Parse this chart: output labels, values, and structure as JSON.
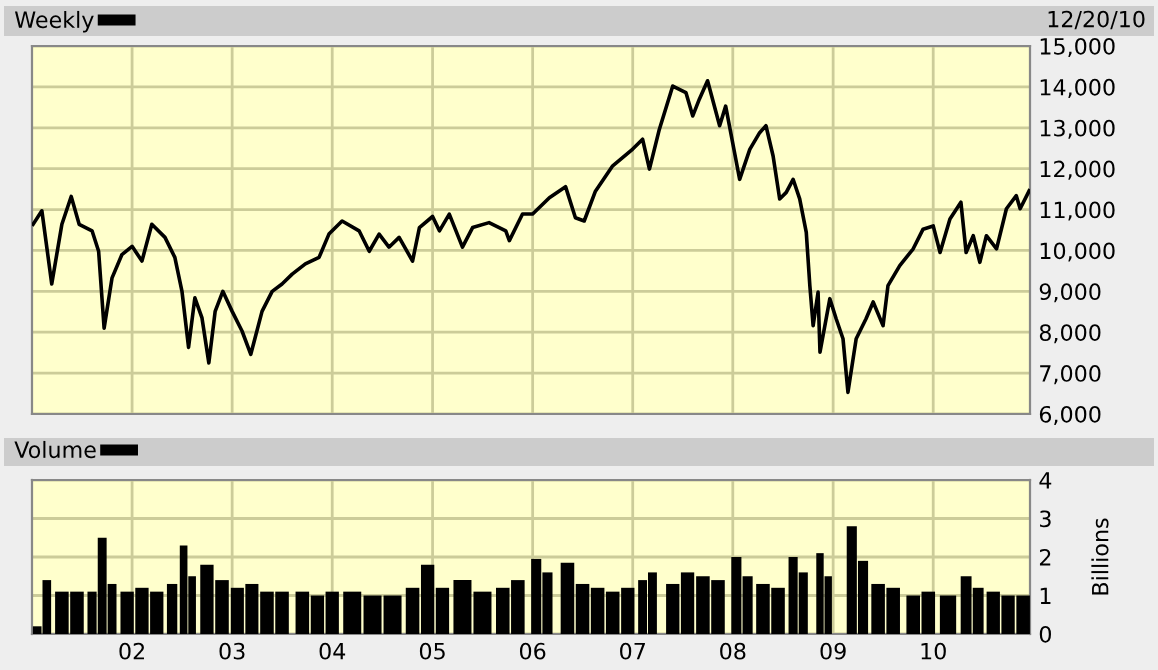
{
  "chart_data": [
    {
      "type": "line",
      "annotations": [
        "12/20/10"
      ],
      "legend": "top left",
      "grid": true,
      "tick_labels": "y",
      "marker": "none",
      "line_style": "solid",
      "xlim": [
        "2001-01-01",
        "2010-12-20"
      ],
      "xticks": [
        {
          "value": "2002-01-01",
          "label": null
        },
        {
          "value": "2003-01-01",
          "label": null
        },
        {
          "value": "2004-01-01",
          "label": null
        },
        {
          "value": "2005-01-01",
          "label": null
        },
        {
          "value": "2006-01-01",
          "label": null
        },
        {
          "value": "2007-01-01",
          "label": null
        },
        {
          "value": "2008-01-01",
          "label": null
        },
        {
          "value": "2009-01-01",
          "label": null
        },
        {
          "value": "2010-01-01",
          "label": null
        }
      ],
      "ylim": [
        6000,
        15000
      ],
      "yticks": [
        {
          "value": 6000,
          "label": "6,000"
        },
        {
          "value": 7000,
          "label": "7,000"
        },
        {
          "value": 8000,
          "label": "8,000"
        },
        {
          "value": 9000,
          "label": "9,000"
        },
        {
          "value": 10000,
          "label": "10,000"
        },
        {
          "value": 11000,
          "label": "11,000"
        },
        {
          "value": 12000,
          "label": "12,000"
        },
        {
          "value": 13000,
          "label": "13,000"
        },
        {
          "value": 14000,
          "label": "14,000"
        },
        {
          "value": 15000,
          "label": "15,000"
        }
      ],
      "series": [
        {
          "name": "Weekly",
          "color": "#000000",
          "x": [
            "2001-01-05",
            "2001-02-06",
            "2001-03-14",
            "2001-04-20",
            "2001-05-24",
            "2001-06-22",
            "2001-08-08",
            "2001-09-01",
            "2001-09-21",
            "2001-10-20",
            "2001-11-25",
            "2002-01-01",
            "2002-02-06",
            "2002-03-14",
            "2002-05-01",
            "2002-06-06",
            "2002-07-02",
            "2002-07-26",
            "2002-08-18",
            "2002-09-13",
            "2002-10-08",
            "2002-10-31",
            "2002-11-28",
            "2003-01-01",
            "2003-02-06",
            "2003-03-10",
            "2003-04-20",
            "2003-05-27",
            "2003-07-02",
            "2003-08-08",
            "2003-09-25",
            "2003-11-14",
            "2003-12-20",
            "2004-02-06",
            "2004-04-08",
            "2004-05-15",
            "2004-06-20",
            "2004-07-26",
            "2004-09-01",
            "2004-10-20",
            "2004-11-14",
            "2005-01-01",
            "2005-01-26",
            "2005-03-03",
            "2005-04-20",
            "2005-05-27",
            "2005-07-26",
            "2005-09-25",
            "2005-10-08",
            "2005-11-25",
            "2006-01-01",
            "2006-03-03",
            "2006-05-01",
            "2006-06-06",
            "2006-07-08",
            "2006-08-18",
            "2006-10-20",
            "2007-01-01",
            "2007-02-06",
            "2007-03-03",
            "2007-04-08",
            "2007-05-27",
            "2007-07-14",
            "2007-08-08",
            "2007-09-01",
            "2007-10-01",
            "2007-11-14",
            "2007-12-06",
            "2008-01-12",
            "2008-01-26",
            "2008-03-03",
            "2008-04-08",
            "2008-05-01",
            "2008-05-27",
            "2008-06-20",
            "2008-07-14",
            "2008-08-08",
            "2008-09-01",
            "2008-09-25",
            "2008-10-08",
            "2008-10-20",
            "2008-11-07",
            "2008-11-14",
            "2008-12-20",
            "2009-01-12",
            "2009-02-06",
            "2009-02-24",
            "2009-03-26",
            "2009-05-01",
            "2009-05-27",
            "2009-07-02",
            "2009-07-20",
            "2009-09-01",
            "2009-10-20",
            "2009-11-25",
            "2010-01-01",
            "2010-01-26",
            "2010-03-03",
            "2010-04-12",
            "2010-05-01",
            "2010-05-27",
            "2010-06-20",
            "2010-07-14",
            "2010-08-20",
            "2010-09-25",
            "2010-10-31",
            "2010-11-14",
            "2010-12-17"
          ],
          "values": [
            10640,
            10970,
            9180,
            10640,
            11320,
            10640,
            10480,
            9980,
            8100,
            9330,
            9900,
            10100,
            9740,
            10640,
            10320,
            9830,
            9000,
            7630,
            8840,
            8350,
            7250,
            8510,
            9000,
            8510,
            8030,
            7460,
            8510,
            9000,
            9180,
            9420,
            9670,
            9830,
            10400,
            10720,
            10480,
            9980,
            10400,
            10080,
            10320,
            9740,
            10560,
            10830,
            10480,
            10890,
            10080,
            10560,
            10680,
            10480,
            10240,
            10890,
            10890,
            11290,
            11560,
            10800,
            10720,
            11450,
            12070,
            12480,
            12720,
            11990,
            12960,
            14020,
            13860,
            13290,
            13700,
            14150,
            13050,
            13530,
            12230,
            11740,
            12470,
            12880,
            13050,
            12310,
            11260,
            11420,
            11740,
            11260,
            10440,
            9140,
            8160,
            8980,
            7510,
            8820,
            8330,
            7840,
            6530,
            7840,
            8330,
            8740,
            8160,
            9140,
            9630,
            10040,
            10520,
            10600,
            9950,
            10770,
            11180,
            9950,
            10360,
            9710,
            10360,
            10040,
            11020,
            11340,
            11020,
            11460
          ]
        }
      ]
    },
    {
      "type": "bar",
      "legend": "top left",
      "grid": true,
      "ylabel": "Billions",
      "xlim": [
        "2001-01-01",
        "2010-12-20"
      ],
      "xticks": [
        {
          "value": "2002-01-01",
          "label": "02"
        },
        {
          "value": "2003-01-01",
          "label": "03"
        },
        {
          "value": "2004-01-01",
          "label": "04"
        },
        {
          "value": "2005-01-01",
          "label": "05"
        },
        {
          "value": "2006-01-01",
          "label": "06"
        },
        {
          "value": "2007-01-01",
          "label": "07"
        },
        {
          "value": "2008-01-01",
          "label": "08"
        },
        {
          "value": "2009-01-01",
          "label": "09"
        },
        {
          "value": "2010-01-01",
          "label": "10"
        }
      ],
      "ylim": [
        0,
        4
      ],
      "yticks": [
        0,
        1,
        2,
        3,
        4
      ],
      "series": [
        {
          "name": "Volume",
          "color": "#000000",
          "x": [
            "2001-01-20",
            "2001-02-24",
            "2001-04-20",
            "2001-06-14",
            "2001-08-08",
            "2001-09-14",
            "2001-10-20",
            "2001-12-14",
            "2002-02-06",
            "2002-04-01",
            "2002-05-27",
            "2002-07-08",
            "2002-08-08",
            "2002-10-01",
            "2002-11-25",
            "2003-01-20",
            "2003-03-14",
            "2003-05-08",
            "2003-07-02",
            "2003-09-14",
            "2003-11-08",
            "2004-01-01",
            "2004-03-14",
            "2004-05-27",
            "2004-08-08",
            "2004-10-20",
            "2004-12-14",
            "2005-02-06",
            "2005-04-20",
            "2005-07-02",
            "2005-09-14",
            "2005-11-08",
            "2006-01-14",
            "2006-02-24",
            "2006-05-08",
            "2006-07-02",
            "2006-08-26",
            "2006-10-20",
            "2006-12-14",
            "2007-02-06",
            "2007-03-14",
            "2007-05-27",
            "2007-07-20",
            "2007-09-14",
            "2007-11-08",
            "2008-01-14",
            "2008-02-24",
            "2008-04-20",
            "2008-06-14",
            "2008-08-08",
            "2008-09-14",
            "2008-11-14",
            "2008-12-14",
            "2009-03-10",
            "2009-04-20",
            "2009-06-14",
            "2009-08-08",
            "2009-10-20",
            "2009-12-14",
            "2010-02-24",
            "2010-05-01",
            "2010-06-14",
            "2010-08-08",
            "2010-10-01",
            "2010-11-25"
          ],
          "values": [
            0.2,
            1.4,
            1.1,
            1.1,
            1.1,
            2.5,
            1.3,
            1.1,
            1.2,
            1.1,
            1.3,
            2.3,
            1.5,
            1.8,
            1.4,
            1.2,
            1.3,
            1.1,
            1.1,
            1.1,
            1.0,
            1.1,
            1.1,
            1.0,
            1.0,
            1.2,
            1.8,
            1.2,
            1.4,
            1.1,
            1.2,
            1.4,
            1.95,
            1.6,
            1.85,
            1.3,
            1.2,
            1.1,
            1.2,
            1.4,
            1.6,
            1.3,
            1.6,
            1.5,
            1.4,
            2.0,
            1.5,
            1.3,
            1.2,
            2.0,
            1.6,
            2.1,
            1.5,
            2.8,
            1.9,
            1.3,
            1.2,
            1.0,
            1.1,
            1.0,
            1.5,
            1.2,
            1.1,
            1.0,
            1.0
          ]
        }
      ]
    }
  ]
}
